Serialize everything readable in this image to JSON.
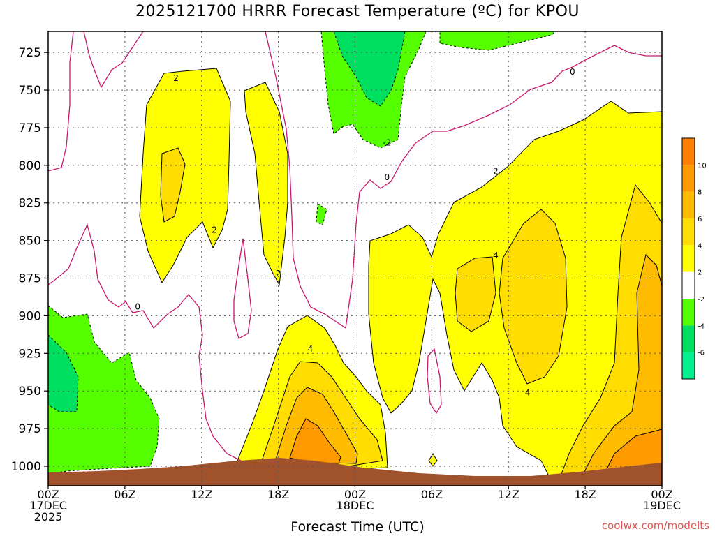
{
  "title": "2025121700 HRRR Forecast Temperature (ºC) for KPOU",
  "credit": "coolwx.com/modelts",
  "chart_data": {
    "type": "heatmap",
    "title": "2025121700 HRRR Forecast Temperature (ºC) for KPOU",
    "xlabel": "Forecast Time (UTC)",
    "ylabel": "",
    "x_ticks": [
      {
        "h": 0,
        "l1": "00Z",
        "l2": "17DEC",
        "l3": "2025"
      },
      {
        "h": 6,
        "l1": "06Z",
        "l2": "",
        "l3": ""
      },
      {
        "h": 12,
        "l1": "12Z",
        "l2": "",
        "l3": ""
      },
      {
        "h": 18,
        "l1": "18Z",
        "l2": "",
        "l3": ""
      },
      {
        "h": 24,
        "l1": "00Z",
        "l2": "18DEC",
        "l3": ""
      },
      {
        "h": 30,
        "l1": "06Z",
        "l2": "",
        "l3": ""
      },
      {
        "h": 36,
        "l1": "12Z",
        "l2": "",
        "l3": ""
      },
      {
        "h": 42,
        "l1": "18Z",
        "l2": "",
        "l3": ""
      },
      {
        "h": 48,
        "l1": "00Z",
        "l2": "19DEC",
        "l3": ""
      }
    ],
    "y_ticks": [
      "725",
      "750",
      "775",
      "800",
      "825",
      "850",
      "875",
      "900",
      "925",
      "950",
      "975",
      "1000"
    ],
    "y_values": [
      725,
      750,
      775,
      800,
      825,
      850,
      875,
      900,
      925,
      950,
      975,
      1000
    ],
    "xlim": [
      0,
      48
    ],
    "ylim": [
      1013,
      711
    ],
    "grid": true,
    "colorbar": {
      "bins": [
        {
          "lo": -8,
          "hi": -6,
          "color": "#00f090"
        },
        {
          "lo": -6,
          "hi": -4,
          "color": "#00e060"
        },
        {
          "lo": -4,
          "hi": -2,
          "color": "#55ff00"
        },
        {
          "lo": -2,
          "hi": 2,
          "color": "#ffffff"
        },
        {
          "lo": 2,
          "hi": 4,
          "color": "#ffff00"
        },
        {
          "lo": 4,
          "hi": 6,
          "color": "#ffdd00"
        },
        {
          "lo": 6,
          "hi": 8,
          "color": "#ffbb00"
        },
        {
          "lo": 8,
          "hi": 10,
          "color": "#ff9900"
        },
        {
          "lo": 10,
          "hi": 12,
          "color": "#ff8000"
        }
      ],
      "labels": [
        "10",
        "8",
        "6",
        "4",
        "2",
        "-2",
        "-4",
        "-6"
      ]
    },
    "contour_labels": [
      {
        "text": "2",
        "h": 10,
        "p": 742
      },
      {
        "text": "2",
        "h": 13,
        "p": 843
      },
      {
        "text": "2",
        "h": 18,
        "p": 872
      },
      {
        "text": "0",
        "h": 7,
        "p": 894
      },
      {
        "text": "4",
        "h": 20.5,
        "p": 922
      },
      {
        "text": "-2",
        "h": 26.5,
        "p": 785
      },
      {
        "text": "0",
        "h": 26.5,
        "p": 808
      },
      {
        "text": "2",
        "h": 35,
        "p": 804
      },
      {
        "text": "4",
        "h": 35,
        "p": 860
      },
      {
        "text": "4",
        "h": 37.5,
        "p": 951
      },
      {
        "text": "0",
        "h": 41,
        "p": 738
      }
    ]
  }
}
